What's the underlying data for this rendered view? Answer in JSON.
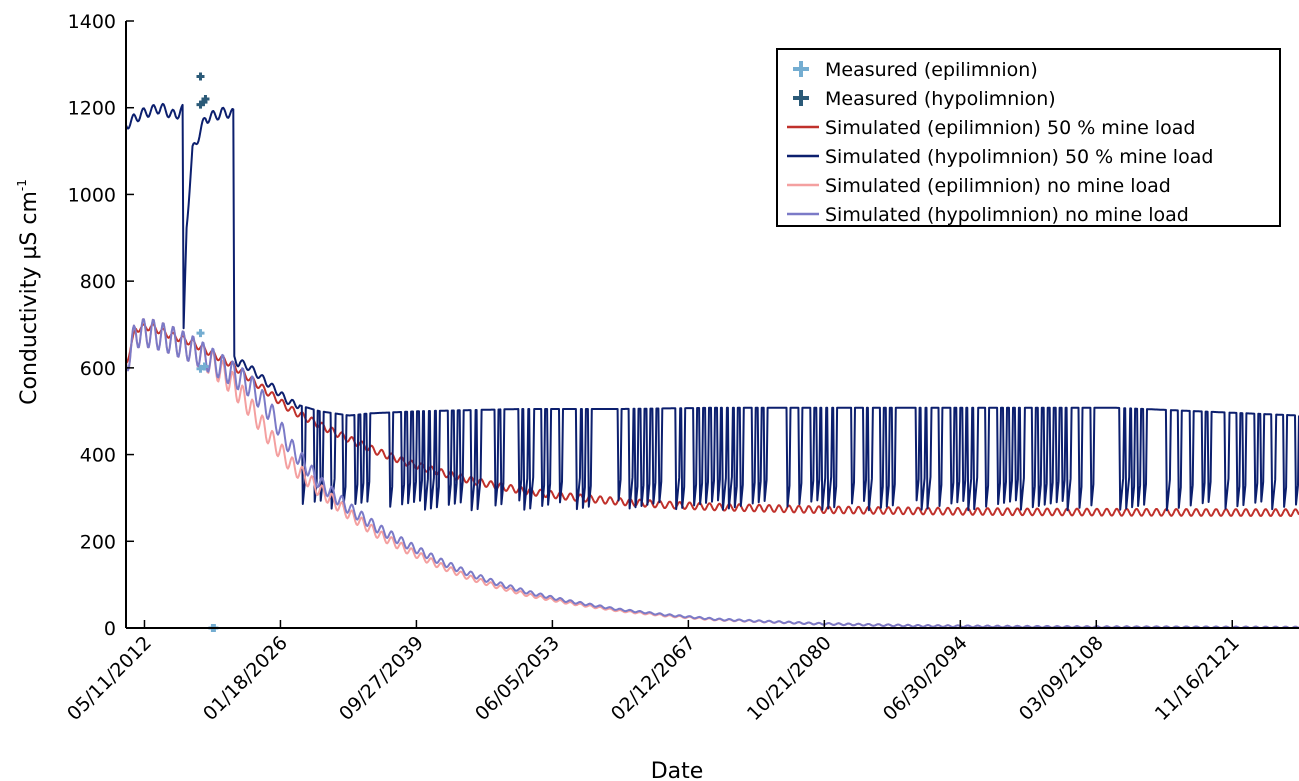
{
  "chart_data": {
    "type": "line",
    "title": "",
    "xlabel": "Date",
    "ylabel": "Conductivity µS cm",
    "ylabel_sup": "-1",
    "ylim": [
      0,
      1400
    ],
    "xlim_year": [
      2010.5,
      2128.6
    ],
    "y_ticks": [
      0,
      200,
      400,
      600,
      800,
      1000,
      1200,
      1400
    ],
    "x_ticks": [
      {
        "label": "05/11/2012",
        "year": 2012.36
      },
      {
        "label": "01/18/2026",
        "year": 2026.05
      },
      {
        "label": "09/27/2039",
        "year": 2039.74
      },
      {
        "label": "06/05/2053",
        "year": 2053.43
      },
      {
        "label": "02/12/2067",
        "year": 2067.12
      },
      {
        "label": "10/21/2080",
        "year": 2080.81
      },
      {
        "label": "06/30/2094",
        "year": 2094.5
      },
      {
        "label": "03/09/2108",
        "year": 2108.19
      },
      {
        "label": "11/16/2121",
        "year": 2121.88
      }
    ],
    "grid": false,
    "legend_position": "top-right",
    "series": [
      {
        "name": "Measured (epilimnion)",
        "kind": "marker",
        "color": "#74add1",
        "points": [
          [
            2018.0,
            680
          ],
          [
            2018.0,
            598
          ],
          [
            2018.4,
            603
          ],
          [
            2019.2,
            0
          ],
          [
            2019.4,
            0
          ]
        ]
      },
      {
        "name": "Measured (hypolimnion)",
        "kind": "marker",
        "color": "#2b5a78",
        "points": [
          [
            2018.0,
            1272
          ],
          [
            2018.0,
            1207
          ],
          [
            2018.3,
            1213
          ],
          [
            2018.5,
            1220
          ]
        ]
      },
      {
        "name": "Simulated (epilimnion) 50 % mine load",
        "kind": "line",
        "color": "#c0312b",
        "points": [
          [
            2010.5,
            610
          ],
          [
            2011.5,
            690
          ],
          [
            2013,
            695
          ],
          [
            2015,
            675
          ],
          [
            2017,
            660
          ],
          [
            2019,
            635
          ],
          [
            2021,
            610
          ],
          [
            2023,
            575
          ],
          [
            2025,
            540
          ],
          [
            2027,
            505
          ],
          [
            2030,
            468
          ],
          [
            2033,
            435
          ],
          [
            2036,
            405
          ],
          [
            2039,
            380
          ],
          [
            2042,
            360
          ],
          [
            2045,
            342
          ],
          [
            2048,
            327
          ],
          [
            2051,
            315
          ],
          [
            2055,
            303
          ],
          [
            2060,
            292
          ],
          [
            2065,
            284
          ],
          [
            2070,
            279
          ],
          [
            2080,
            273
          ],
          [
            2090,
            270
          ],
          [
            2100,
            268
          ],
          [
            2110,
            267
          ],
          [
            2128.6,
            266
          ]
        ]
      },
      {
        "name": "Simulated (hypolimnion) 50 % mine load",
        "kind": "line",
        "color": "#0c1f6e",
        "points": [
          [
            2010.5,
            1160
          ],
          [
            2012,
            1185
          ],
          [
            2014,
            1200
          ],
          [
            2015.5,
            1180
          ],
          [
            2016,
            1195
          ],
          [
            2016.2,
            1195
          ],
          [
            2016.3,
            680
          ],
          [
            2016.6,
            930
          ],
          [
            2017.2,
            1100
          ],
          [
            2018.5,
            1175
          ],
          [
            2020.5,
            1190
          ],
          [
            2021.3,
            1185
          ],
          [
            2021.4,
            620
          ],
          [
            2023,
            600
          ],
          [
            2025,
            560
          ],
          [
            2027,
            520
          ],
          [
            2030,
            500
          ],
          [
            2033,
            490
          ],
          [
            2035,
            495
          ],
          [
            2040,
            500
          ],
          [
            2050,
            505
          ],
          [
            2060,
            505
          ],
          [
            2070,
            508
          ],
          [
            2080,
            508
          ],
          [
            2090,
            508
          ],
          [
            2100,
            508
          ],
          [
            2110,
            508
          ],
          [
            2128.6,
            490
          ]
        ],
        "oscillation": {
          "start_year": 2028,
          "low": 270,
          "high": 510
        }
      },
      {
        "name": "Simulated (epilimnion) no mine load",
        "kind": "line",
        "color": "#f4a0a0",
        "points": [
          [
            2010.5,
            610
          ],
          [
            2011.5,
            680
          ],
          [
            2013,
            680
          ],
          [
            2015,
            665
          ],
          [
            2017,
            645
          ],
          [
            2019,
            615
          ],
          [
            2021,
            570
          ],
          [
            2023,
            510
          ],
          [
            2025,
            440
          ],
          [
            2027,
            380
          ],
          [
            2030,
            318
          ],
          [
            2033,
            262
          ],
          [
            2036,
            215
          ],
          [
            2039,
            178
          ],
          [
            2042,
            145
          ],
          [
            2045,
            117
          ],
          [
            2048,
            95
          ],
          [
            2051,
            76
          ],
          [
            2055,
            58
          ],
          [
            2060,
            40
          ],
          [
            2065,
            28
          ],
          [
            2070,
            19
          ],
          [
            2080,
            10
          ],
          [
            2090,
            5
          ],
          [
            2100,
            3
          ],
          [
            2110,
            2
          ],
          [
            2128.6,
            1
          ]
        ]
      },
      {
        "name": "Simulated (hypolimnion) no mine load",
        "kind": "line",
        "color": "#7b7ac7",
        "points": [
          [
            2010.5,
            610
          ],
          [
            2011.5,
            680
          ],
          [
            2013,
            680
          ],
          [
            2015,
            665
          ],
          [
            2017,
            645
          ],
          [
            2019,
            618
          ],
          [
            2021,
            590
          ],
          [
            2023,
            560
          ],
          [
            2025,
            500
          ],
          [
            2027,
            420
          ],
          [
            2030,
            335
          ],
          [
            2033,
            275
          ],
          [
            2036,
            228
          ],
          [
            2039,
            190
          ],
          [
            2042,
            155
          ],
          [
            2045,
            126
          ],
          [
            2048,
            102
          ],
          [
            2051,
            82
          ],
          [
            2055,
            62
          ],
          [
            2060,
            43
          ],
          [
            2065,
            30
          ],
          [
            2070,
            20
          ],
          [
            2080,
            10
          ],
          [
            2090,
            5
          ],
          [
            2100,
            3
          ],
          [
            2110,
            2
          ],
          [
            2128.6,
            1
          ]
        ]
      }
    ]
  }
}
